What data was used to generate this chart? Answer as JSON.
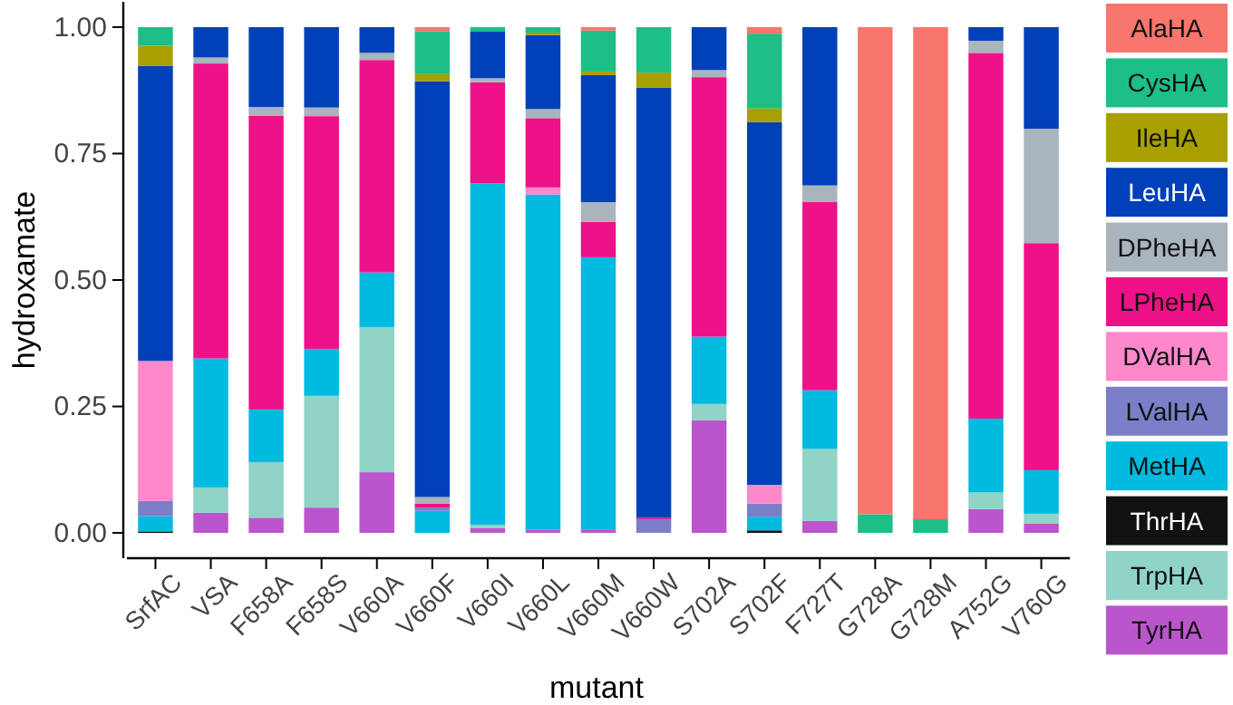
{
  "chart_data": {
    "type": "bar",
    "stacked": true,
    "xlabel": "mutant",
    "ylabel": "hydroxamate",
    "categories": [
      "SrfAC",
      "VSA",
      "F658A",
      "F658S",
      "V660A",
      "V660F",
      "V660I",
      "V660L",
      "V660M",
      "V660W",
      "S702A",
      "S702F",
      "F727T",
      "G728A",
      "G728M",
      "A752G",
      "V760G"
    ],
    "ylim": [
      -0.05,
      1.05
    ],
    "yticks": [
      {
        "value": 0,
        "label": "0.00"
      },
      {
        "value": 0.25,
        "label": "0.25"
      },
      {
        "value": 0.5,
        "label": "0.50"
      },
      {
        "value": 0.75,
        "label": "0.75"
      },
      {
        "value": 1,
        "label": "1.00"
      }
    ],
    "grid": false,
    "legend": "right",
    "series": [
      {
        "name": "TyrHA",
        "color": "#bb55cc",
        "values": [
          null,
          0.04,
          0.03,
          0.05,
          0.12,
          null,
          0.01,
          0.006,
          0.007,
          null,
          0.223,
          null,
          0.024,
          null,
          null,
          0.047,
          0.018
        ]
      },
      {
        "name": "TrpHA",
        "color": "#8fd4c6",
        "values": [
          null,
          0.05,
          0.11,
          0.221,
          0.287,
          null,
          0.006,
          null,
          null,
          null,
          0.032,
          null,
          0.142,
          null,
          null,
          0.033,
          0.02
        ]
      },
      {
        "name": "ThrHA",
        "color": "#111111",
        "values": [
          0.003,
          null,
          null,
          null,
          null,
          null,
          null,
          null,
          null,
          null,
          null,
          0.005,
          null,
          null,
          null,
          null,
          null
        ]
      },
      {
        "name": "MetHA",
        "color": "#00bae0",
        "values": [
          0.03,
          0.255,
          0.104,
          0.093,
          0.108,
          0.044,
          0.675,
          0.663,
          0.538,
          null,
          0.133,
          0.027,
          0.116,
          null,
          null,
          0.146,
          0.086
        ]
      },
      {
        "name": "LValHA",
        "color": "#7a7fc8",
        "values": [
          0.03,
          null,
          null,
          null,
          null,
          0.006,
          null,
          null,
          null,
          0.026,
          null,
          0.026,
          null,
          null,
          null,
          null,
          null
        ]
      },
      {
        "name": "DValHA",
        "color": "#ff88cc",
        "values": [
          0.277,
          null,
          null,
          null,
          null,
          null,
          null,
          0.014,
          null,
          null,
          null,
          0.037,
          null,
          null,
          null,
          null,
          null
        ]
      },
      {
        "name": "LPheHA",
        "color": "#ee1188",
        "values": [
          null,
          0.583,
          0.581,
          0.46,
          0.42,
          0.008,
          0.2,
          0.137,
          0.07,
          0.004,
          0.513,
          null,
          0.372,
          null,
          null,
          0.723,
          0.449
        ]
      },
      {
        "name": "DPheHA",
        "color": "#aab4bd",
        "values": [
          null,
          0.012,
          0.017,
          0.017,
          0.014,
          0.013,
          0.008,
          0.018,
          0.039,
          null,
          0.014,
          null,
          0.033,
          null,
          null,
          0.024,
          0.226
        ]
      },
      {
        "name": "LeuHA",
        "color": "#0040b8",
        "values": [
          0.583,
          0.06,
          0.158,
          0.159,
          0.051,
          0.822,
          0.093,
          0.146,
          0.251,
          0.85,
          0.085,
          0.717,
          0.313,
          null,
          null,
          0.027,
          0.201
        ]
      },
      {
        "name": "IleHA",
        "color": "#a8a000",
        "values": [
          0.04,
          null,
          null,
          null,
          null,
          0.014,
          null,
          0.005,
          0.007,
          0.03,
          null,
          0.027,
          null,
          null,
          null,
          null,
          null
        ]
      },
      {
        "name": "CysHA",
        "color": "#1dbf87",
        "values": [
          0.037,
          null,
          null,
          null,
          null,
          0.085,
          0.008,
          0.011,
          0.081,
          0.09,
          null,
          0.148,
          null,
          0.037,
          0.027,
          null,
          null
        ]
      },
      {
        "name": "AlaHA",
        "color": "#f8766d",
        "values": [
          null,
          null,
          null,
          null,
          null,
          0.008,
          null,
          null,
          0.007,
          null,
          null,
          0.013,
          null,
          0.963,
          0.973,
          null,
          null
        ]
      }
    ]
  }
}
